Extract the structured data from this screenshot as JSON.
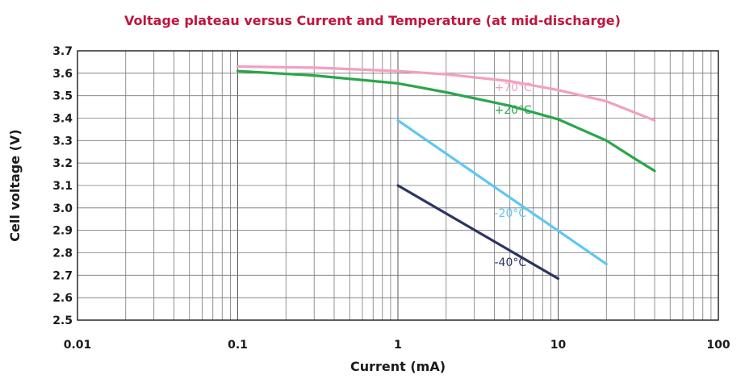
{
  "chart_data": {
    "type": "line",
    "title": "Voltage plateau versus Current and Temperature (at mid-discharge)",
    "xlabel": "Current (mA)",
    "ylabel": "Cell voltage (V)",
    "xscale": "log",
    "xlim": [
      0.01,
      100
    ],
    "ylim": [
      2.5,
      3.7
    ],
    "grid": true,
    "xticks": [
      0.01,
      0.1,
      1,
      10,
      100
    ],
    "xtick_labels": [
      "0.01",
      "0.1",
      "1",
      "10",
      "100"
    ],
    "yticks": [
      2.5,
      2.6,
      2.7,
      2.8,
      2.9,
      3.0,
      3.1,
      3.2,
      3.3,
      3.4,
      3.5,
      3.6,
      3.7
    ],
    "ytick_labels": [
      "2.5",
      "2.6",
      "2.7",
      "2.8",
      "2.9",
      "3.0",
      "3.1",
      "3.2",
      "3.3",
      "3.4",
      "3.5",
      "3.6",
      "3.7"
    ],
    "series": [
      {
        "name": "+70°C",
        "color": "#f2a0c0",
        "x": [
          0.1,
          0.3,
          1,
          2,
          5,
          10,
          20,
          40
        ],
        "y": [
          3.63,
          3.625,
          3.61,
          3.595,
          3.565,
          3.525,
          3.475,
          3.39
        ],
        "label_at": [
          4,
          3.52
        ]
      },
      {
        "name": "+20°C",
        "color": "#2aa64a",
        "x": [
          0.1,
          0.3,
          1,
          2,
          5,
          10,
          20,
          30,
          40
        ],
        "y": [
          3.61,
          3.59,
          3.555,
          3.515,
          3.455,
          3.395,
          3.3,
          3.22,
          3.165
        ],
        "label_at": [
          4,
          3.42
        ]
      },
      {
        "name": "-20°C",
        "color": "#5ec8f0",
        "x": [
          1,
          20
        ],
        "y": [
          3.39,
          2.75
        ],
        "label_at": [
          4,
          2.96
        ]
      },
      {
        "name": "-40°C",
        "color": "#2b3560",
        "x": [
          1,
          10
        ],
        "y": [
          3.1,
          2.685
        ],
        "label_at": [
          4,
          2.74
        ]
      }
    ]
  }
}
